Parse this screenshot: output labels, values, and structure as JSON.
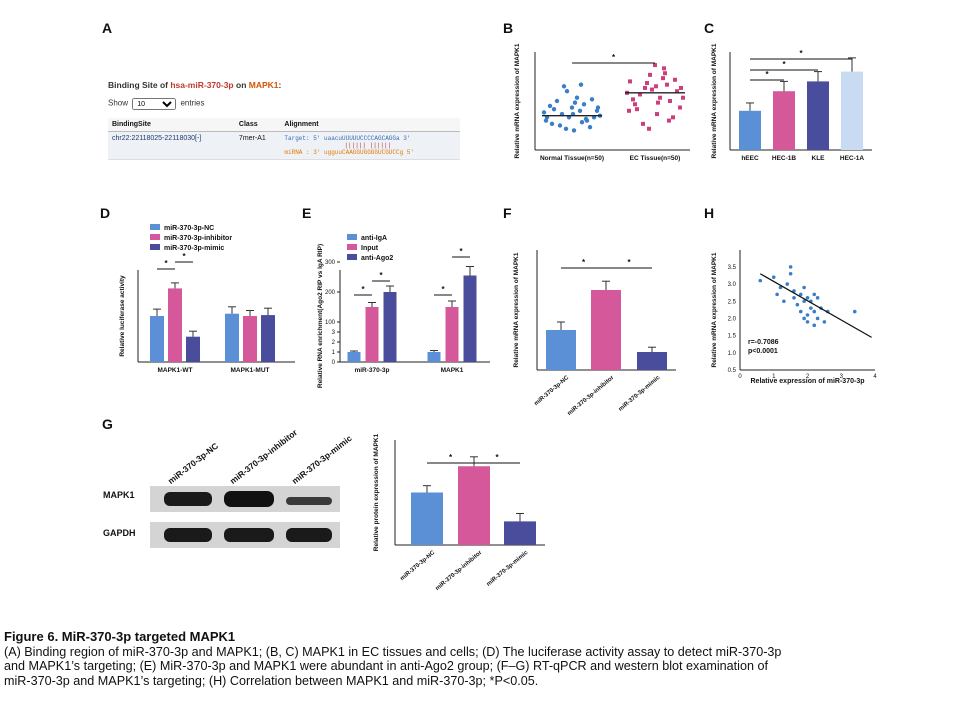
{
  "panels": {
    "A": "A",
    "B": "B",
    "C": "C",
    "D": "D",
    "E": "E",
    "F": "F",
    "G": "G",
    "H": "H"
  },
  "panelA": {
    "title_prefix": "Binding Site of ",
    "mirna": "hsa-miR-370-3p",
    "title_mid": " on ",
    "gene": "MAPK1",
    "title_suffix": ":",
    "show_label": "Show",
    "show_value": "10",
    "entries_label": "entries",
    "headers": [
      "BindingSite",
      "Class",
      "Alignment"
    ],
    "row": {
      "site": "chr22:22118025-22118030[-]",
      "class": "7mer-A1",
      "target": "Target: 5' uaacuUUUUUCCCCAGCAGGa 3'",
      "pairs": "||||||  ||||||",
      "mirna": "miRNA : 3' ugguuCAAGGUGGGGUCGUCCg 5'"
    }
  },
  "chart_data": [
    {
      "id": "B",
      "type": "scatter",
      "ylabel": "Relative mRNA expression of MAPK1",
      "categories": [
        "Normal Tissue(n=50)",
        "EC Tissue(n=50)"
      ],
      "means": [
        1.05,
        1.75
      ],
      "color": [
        "#3a7dc9",
        "#cc3f7d"
      ],
      "significance": [
        "*"
      ]
    },
    {
      "id": "C",
      "type": "bar",
      "ylabel": "Relative mRNA expression of MAPK1",
      "categories": [
        "hEEC",
        "HEC-1B",
        "KLE",
        "HEC-1A"
      ],
      "values": [
        1.0,
        1.5,
        1.75,
        2.0
      ],
      "errors": [
        0.2,
        0.25,
        0.25,
        0.35
      ],
      "ylim": [
        0,
        2.5
      ],
      "colors": [
        "#5b8fd6",
        "#d4589a",
        "#4a4d9c",
        "#c9dbf2"
      ],
      "significance": [
        "*",
        "*",
        "*"
      ]
    },
    {
      "id": "D",
      "type": "bar",
      "ylabel": "Relative luciferase activity",
      "categories": [
        "MAPK1-WT",
        "MAPK1-MUT"
      ],
      "series": [
        {
          "name": "miR-370-3p-NC",
          "values": [
            1.0,
            1.05
          ],
          "errors": [
            0.15,
            0.15
          ]
        },
        {
          "name": "miR-370-3p-inhibitor",
          "values": [
            1.6,
            1.0
          ],
          "errors": [
            0.12,
            0.12
          ]
        },
        {
          "name": "miR-370-3p-mimic",
          "values": [
            0.55,
            1.02
          ],
          "errors": [
            0.12,
            0.15
          ]
        }
      ],
      "colors": [
        "#5b8fd6",
        "#d4589a",
        "#4a4d9c"
      ],
      "ylim": [
        0,
        2
      ],
      "significance": [
        "*",
        "*"
      ]
    },
    {
      "id": "E",
      "type": "bar",
      "ylabel": "Relative RNA enrichment(Ago2 RIP vs IgA RIP)",
      "categories": [
        "miR-370-3p",
        "MAPK1"
      ],
      "series": [
        {
          "name": "anti-IgA",
          "values": [
            1,
            1
          ],
          "errors": [
            0.1,
            0.15
          ]
        },
        {
          "name": "Input",
          "values": [
            100,
            100
          ],
          "errors": [
            15,
            20
          ]
        },
        {
          "name": "anti-Ago2",
          "values": [
            150,
            205
          ],
          "errors": [
            20,
            30
          ]
        }
      ],
      "colors": [
        "#5b8fd6",
        "#d4589a",
        "#4a4d9c"
      ],
      "yticks": [
        "0",
        "1",
        "2",
        "3",
        "100",
        "200",
        "300"
      ],
      "significance": [
        "*",
        "*",
        "*",
        "*"
      ]
    },
    {
      "id": "F",
      "type": "bar",
      "ylabel": "Relative mRNA expression of MAPK1",
      "categories": [
        "miR-370-3p-NC",
        "miR-370-3p-inhibitor",
        "miR-370-3p-mimic"
      ],
      "values": [
        1.0,
        2.0,
        0.45
      ],
      "errors": [
        0.2,
        0.22,
        0.12
      ],
      "ylim": [
        0,
        3
      ],
      "colors": [
        "#5b8fd6",
        "#d4589a",
        "#4a4d9c"
      ],
      "significance": [
        "*",
        "*"
      ]
    },
    {
      "id": "G",
      "type": "bar",
      "ylabel": "Relative protein expression of MAPK1",
      "categories": [
        "miR-370-3p-NC",
        "miR-370-3p-inhibitor",
        "miR-370-3p-mimic"
      ],
      "values": [
        1.0,
        1.5,
        0.45
      ],
      "errors": [
        0.13,
        0.18,
        0.15
      ],
      "ylim": [
        0,
        2
      ],
      "colors": [
        "#5b8fd6",
        "#d4589a",
        "#4a4d9c"
      ],
      "significance": [
        "*",
        "*"
      ]
    },
    {
      "id": "H",
      "type": "scatter",
      "ylabel": "Relative mRNA expression of MAPK1",
      "xlabel": "Relative expression of miR-370-3p",
      "xticks": [
        "0",
        "1",
        "2",
        "3",
        "4"
      ],
      "yticks": [
        "0.5",
        "1.0",
        "1.5",
        "2.0",
        "2.5",
        "3.0",
        "3.5"
      ],
      "stat_r": "r=-0.7086",
      "stat_p": "p<0.0001"
    }
  ],
  "blot": {
    "lanes": [
      "miR-370-3p-NC",
      "miR-370-3p-inhibitor",
      "miR-370-3p-mimic"
    ],
    "rows": [
      "MAPK1",
      "GAPDH"
    ]
  },
  "caption": {
    "title": "Figure 6. MiR-370-3p targeted MAPK1",
    "line1": "(A) Binding region of miR-370-3p and MAPK1; (B, C) MAPK1 in EC tissues and cells; (D) The luciferase activity assay to detect miR-370-3p",
    "line2": "and MAPK1’s targeting; (E) MiR-370-3p and MAPK1 were abundant in anti-Ago2 group; (F–G) RT-qPCR and western blot examination of",
    "line3": "miR-370-3p and MAPK1’s targeting; (H) Correlation between MAPK1 and miR-370-3p; *P<0.05."
  }
}
